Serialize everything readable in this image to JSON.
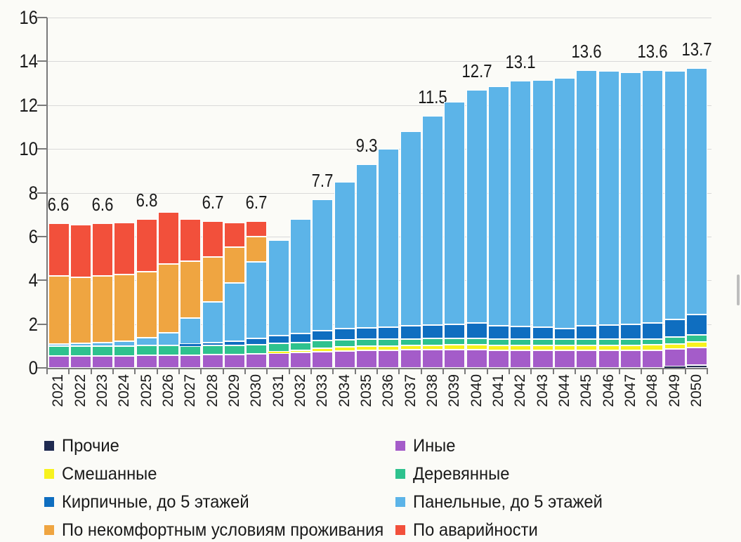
{
  "page": {
    "background": "#fbfbf7",
    "text_color": "#1a1a1a"
  },
  "chart_data": {
    "type": "bar",
    "stacked": true,
    "title": "",
    "xlabel": "",
    "ylabel": "",
    "ylim": [
      0,
      16
    ],
    "yticks": [
      "0",
      "2",
      "4",
      "6",
      "8",
      "10",
      "12",
      "14",
      "16"
    ],
    "grid": true,
    "grid_color": "#d9d9d9",
    "axis_color": "#7a7a7a",
    "bar_border_color": "#ffffff",
    "legend_position": "bottom",
    "categories": [
      "2021",
      "2022",
      "2023",
      "2024",
      "2025",
      "2026",
      "2027",
      "2028",
      "2029",
      "2030",
      "2031",
      "2032",
      "2033",
      "2034",
      "2035",
      "2036",
      "2037",
      "2038",
      "2039",
      "2040",
      "2041",
      "2042",
      "2043",
      "2044",
      "2045",
      "2046",
      "2047",
      "2048",
      "2049",
      "2050"
    ],
    "series": [
      {
        "name": "Прочие",
        "slug": "prochie",
        "color": "#1f2a50",
        "values": [
          0,
          0,
          0,
          0,
          0,
          0,
          0,
          0,
          0,
          0,
          0,
          0,
          0,
          0,
          0,
          0,
          0,
          0,
          0,
          0,
          0,
          0,
          0,
          0,
          0,
          0,
          0,
          0,
          0.05,
          0.12
        ]
      },
      {
        "name": "Иные",
        "slug": "inye",
        "color": "#a45cc9",
        "values": [
          0.55,
          0.55,
          0.55,
          0.55,
          0.58,
          0.58,
          0.58,
          0.62,
          0.62,
          0.65,
          0.68,
          0.7,
          0.75,
          0.78,
          0.8,
          0.8,
          0.82,
          0.82,
          0.83,
          0.83,
          0.8,
          0.8,
          0.8,
          0.8,
          0.8,
          0.8,
          0.8,
          0.8,
          0.8,
          0.8
        ]
      },
      {
        "name": "Смешанные",
        "slug": "smeshannye",
        "color": "#f7f21e",
        "values": [
          0,
          0,
          0,
          0,
          0,
          0,
          0,
          0,
          0,
          0,
          0.05,
          0.1,
          0.15,
          0.18,
          0.2,
          0.2,
          0.21,
          0.22,
          0.22,
          0.23,
          0.23,
          0.23,
          0.23,
          0.23,
          0.24,
          0.24,
          0.24,
          0.25,
          0.25,
          0.27
        ]
      },
      {
        "name": "Деревянные",
        "slug": "derevyannye",
        "color": "#2ec28e",
        "values": [
          0.45,
          0.45,
          0.45,
          0.45,
          0.45,
          0.45,
          0.42,
          0.4,
          0.4,
          0.4,
          0.38,
          0.36,
          0.34,
          0.32,
          0.3,
          0.3,
          0.3,
          0.3,
          0.3,
          0.3,
          0.28,
          0.28,
          0.28,
          0.28,
          0.28,
          0.28,
          0.28,
          0.28,
          0.3,
          0.33
        ]
      },
      {
        "name": "Кирпичные, до 5 этажей",
        "slug": "kirpichnye-do-5",
        "color": "#0f6ec0",
        "values": [
          0,
          0,
          0,
          0,
          0,
          0,
          0.08,
          0.14,
          0.2,
          0.3,
          0.35,
          0.4,
          0.46,
          0.5,
          0.52,
          0.55,
          0.58,
          0.62,
          0.65,
          0.68,
          0.6,
          0.58,
          0.55,
          0.5,
          0.6,
          0.64,
          0.66,
          0.72,
          0.82,
          0.93
        ]
      },
      {
        "name": "Панельные, до 5 этажей",
        "slug": "panelnye-do-5",
        "color": "#5cb4e8",
        "values": [
          0.1,
          0.12,
          0.15,
          0.22,
          0.35,
          0.58,
          1.2,
          1.85,
          2.65,
          3.5,
          4.39,
          5.24,
          6.0,
          6.72,
          7.48,
          8.15,
          8.89,
          9.54,
          10.15,
          10.66,
          10.94,
          11.21,
          11.29,
          11.44,
          11.68,
          11.59,
          11.52,
          11.55,
          11.33,
          11.25
        ]
      },
      {
        "name": "По некомфортным условиям проживания",
        "slug": "nekomfortnye-usloviya",
        "color": "#efa541",
        "values": [
          3.1,
          3.03,
          3.05,
          3.03,
          3.02,
          3.15,
          2.6,
          2.07,
          1.63,
          1.15,
          0,
          0,
          0,
          0,
          0,
          0,
          0,
          0,
          0,
          0,
          0,
          0,
          0,
          0,
          0,
          0,
          0,
          0,
          0,
          0
        ]
      },
      {
        "name": "По аварийности",
        "slug": "avariynost",
        "color": "#f2503b",
        "values": [
          2.4,
          2.4,
          2.4,
          2.4,
          2.4,
          2.35,
          1.92,
          1.62,
          1.15,
          0.7,
          0,
          0,
          0,
          0,
          0,
          0,
          0,
          0,
          0,
          0,
          0,
          0,
          0,
          0,
          0,
          0,
          0,
          0,
          0,
          0
        ]
      }
    ],
    "total_labels": {
      "2021": "6.6",
      "2023": "6.6",
      "2025": "6.8",
      "2028": "6.7",
      "2030": "6.7",
      "2033": "7.7",
      "2035": "9.3",
      "2038": "11.5",
      "2040": "12.7",
      "2042": "13.1",
      "2045": "13.6",
      "2048": "13.6",
      "2050": "13.7"
    }
  },
  "legend": {
    "left_series": [
      0,
      2,
      4,
      6
    ],
    "right_series": [
      1,
      3,
      5,
      7
    ]
  }
}
